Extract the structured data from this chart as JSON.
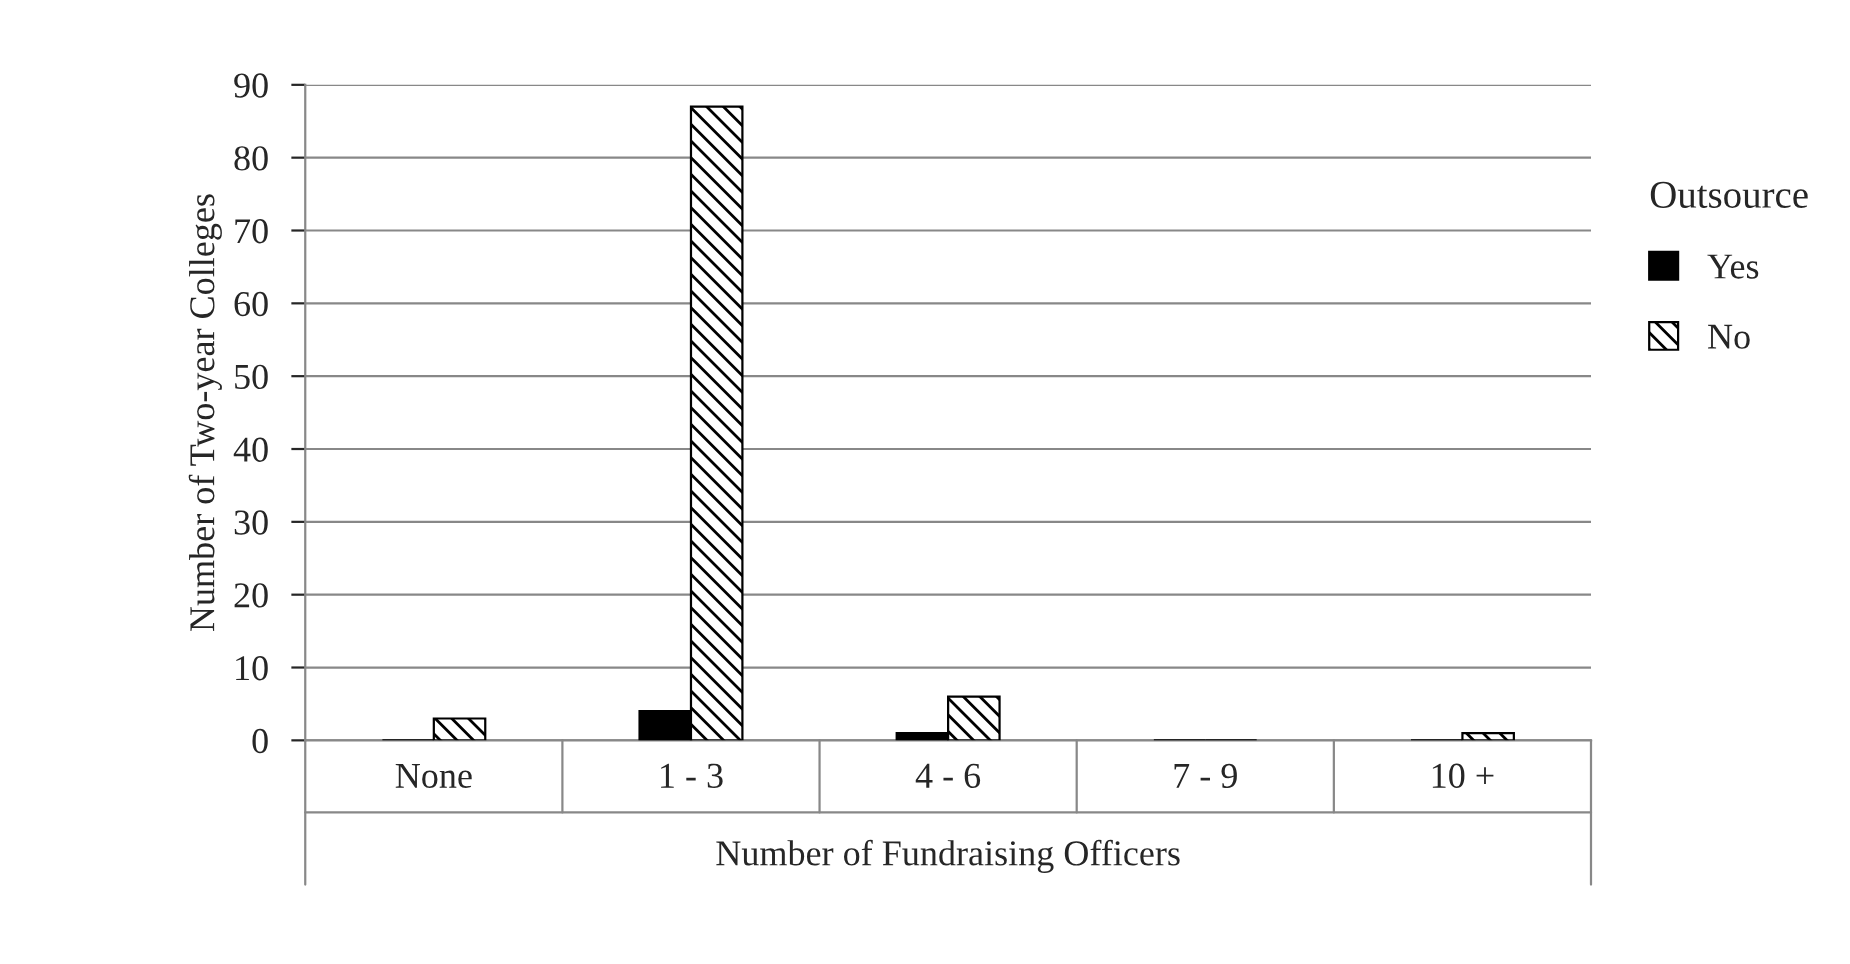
{
  "chart_data": {
    "type": "bar",
    "xlabel": "Number of Fundraising Officers",
    "ylabel": "Number of Two-year Colleges",
    "legend_title": "Outsource",
    "categories": [
      "None",
      "1 - 3",
      "4 - 6",
      "7 - 9",
      "10 +"
    ],
    "series": [
      {
        "name": "Yes",
        "color": "#000000",
        "values": [
          0,
          4,
          1,
          0,
          0
        ]
      },
      {
        "name": "No",
        "color": "#000000",
        "values": [
          3,
          87,
          6,
          0,
          1
        ]
      }
    ],
    "ylim": [
      0,
      90
    ],
    "yticks": [
      0,
      10,
      20,
      30,
      40,
      50,
      60,
      70,
      80,
      90
    ],
    "grid": "y",
    "legend": "right"
  }
}
